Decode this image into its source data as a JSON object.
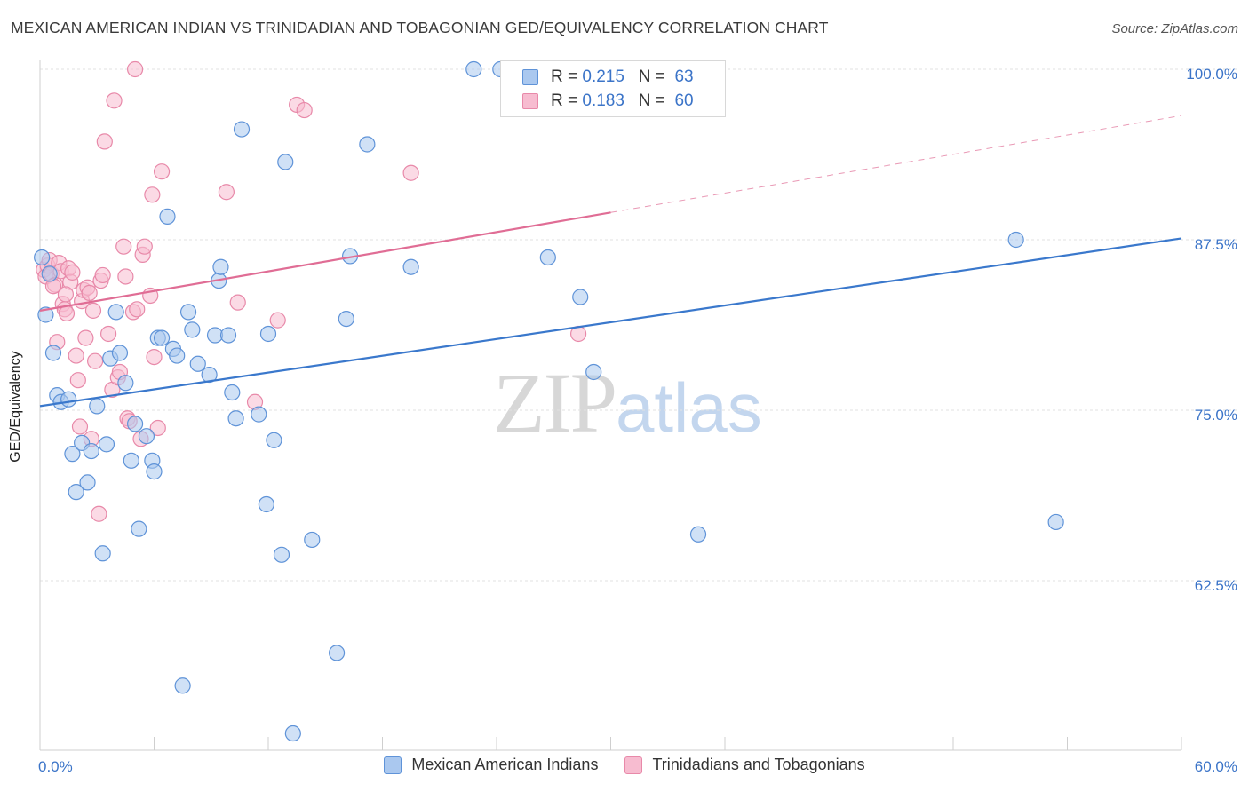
{
  "header": {
    "title": "MEXICAN AMERICAN INDIAN VS TRINIDADIAN AND TOBAGONIAN GED/EQUIVALENCY CORRELATION CHART",
    "source": "Source: ZipAtlas.com"
  },
  "watermark": {
    "zip": "ZIP",
    "atlas": "atlas"
  },
  "legend_top": [
    {
      "r_label": "R =",
      "r_value": "0.215",
      "n_label": "N =",
      "n_value": "63"
    },
    {
      "r_label": "R =",
      "r_value": "0.183",
      "n_label": "N =",
      "n_value": "60"
    }
  ],
  "colors": {
    "blue_fill": "#aac8ef",
    "blue_stroke": "#5f93d8",
    "blue_line": "#3a78cc",
    "pink_fill": "#f7bcd0",
    "pink_stroke": "#e889a9",
    "pink_line": "#e06d95",
    "tick_label": "#3b74c8",
    "grid": "#e2e2e2"
  },
  "chart_data": {
    "type": "scatter",
    "title": "MEXICAN AMERICAN INDIAN VS TRINIDADIAN AND TOBAGONIAN GED/EQUIVALENCY CORRELATION CHART",
    "xlabel": "",
    "ylabel": "GED/Equivalency",
    "xlim": [
      0,
      60
    ],
    "ylim": [
      51,
      102
    ],
    "x_tick_labels": [
      "0.0%",
      "60.0%"
    ],
    "y_ticks": [
      62.5,
      75.0,
      87.5,
      100.0
    ],
    "y_tick_labels": [
      "62.5%",
      "75.0%",
      "87.5%",
      "100.0%"
    ],
    "grid": "horizontal dashed",
    "legend_position": "top-center and bottom",
    "series": [
      {
        "name": "Mexican American Indians",
        "color": "#aac8ef",
        "r": 0.215,
        "n": 63,
        "trend": {
          "x": [
            0,
            60
          ],
          "y": [
            75.3,
            87.6
          ],
          "style": "solid"
        },
        "points": [
          [
            0.1,
            86.2
          ],
          [
            0.3,
            82.0
          ],
          [
            0.7,
            79.2
          ],
          [
            0.9,
            76.1
          ],
          [
            1.1,
            75.6
          ],
          [
            1.5,
            75.8
          ],
          [
            1.7,
            71.8
          ],
          [
            1.9,
            69.0
          ],
          [
            2.2,
            72.6
          ],
          [
            2.5,
            69.7
          ],
          [
            2.7,
            72.0
          ],
          [
            3.0,
            75.3
          ],
          [
            3.3,
            64.5
          ],
          [
            3.5,
            72.5
          ],
          [
            3.7,
            78.8
          ],
          [
            4.0,
            82.2
          ],
          [
            4.2,
            79.2
          ],
          [
            4.5,
            77.0
          ],
          [
            4.8,
            71.3
          ],
          [
            5.0,
            74.0
          ],
          [
            5.2,
            66.3
          ],
          [
            5.6,
            73.1
          ],
          [
            5.9,
            71.3
          ],
          [
            6.0,
            70.5
          ],
          [
            6.2,
            80.3
          ],
          [
            6.4,
            80.3
          ],
          [
            6.7,
            89.2
          ],
          [
            7.0,
            79.5
          ],
          [
            7.2,
            79.0
          ],
          [
            7.5,
            54.8
          ],
          [
            7.8,
            82.2
          ],
          [
            8.0,
            80.9
          ],
          [
            8.3,
            78.4
          ],
          [
            8.9,
            77.6
          ],
          [
            9.2,
            80.5
          ],
          [
            9.4,
            84.5
          ],
          [
            9.5,
            85.5
          ],
          [
            9.9,
            80.5
          ],
          [
            10.1,
            76.3
          ],
          [
            10.3,
            74.4
          ],
          [
            10.6,
            95.6
          ],
          [
            11.5,
            74.7
          ],
          [
            11.9,
            68.1
          ],
          [
            12.0,
            80.6
          ],
          [
            12.3,
            72.8
          ],
          [
            12.7,
            64.4
          ],
          [
            12.9,
            93.2
          ],
          [
            13.3,
            51.3
          ],
          [
            14.3,
            65.5
          ],
          [
            15.6,
            57.2
          ],
          [
            16.1,
            81.7
          ],
          [
            16.3,
            86.3
          ],
          [
            17.2,
            94.5
          ],
          [
            19.5,
            85.5
          ],
          [
            22.8,
            100.0
          ],
          [
            24.2,
            100.0
          ],
          [
            26.7,
            86.2
          ],
          [
            28.4,
            83.3
          ],
          [
            29.1,
            77.8
          ],
          [
            34.6,
            65.9
          ],
          [
            51.3,
            87.5
          ],
          [
            53.4,
            66.8
          ],
          [
            0.5,
            85.0
          ]
        ]
      },
      {
        "name": "Trinidadians and Tobagonians",
        "color": "#f7bcd0",
        "r": 0.183,
        "n": 60,
        "trend": {
          "x": [
            0,
            30
          ],
          "y": [
            82.3,
            89.5
          ],
          "style": "solid",
          "extended": {
            "x": [
              30,
              60
            ],
            "y": [
              89.5,
              96.6
            ],
            "style": "dashed"
          }
        },
        "points": [
          [
            0.2,
            85.3
          ],
          [
            0.3,
            84.8
          ],
          [
            0.4,
            85.6
          ],
          [
            0.5,
            86.0
          ],
          [
            0.6,
            85.0
          ],
          [
            0.8,
            84.2
          ],
          [
            0.9,
            80.0
          ],
          [
            1.0,
            85.8
          ],
          [
            1.1,
            85.2
          ],
          [
            1.2,
            82.8
          ],
          [
            1.3,
            82.4
          ],
          [
            1.4,
            82.1
          ],
          [
            1.5,
            85.4
          ],
          [
            1.6,
            84.4
          ],
          [
            1.7,
            85.1
          ],
          [
            1.9,
            79.0
          ],
          [
            2.0,
            77.2
          ],
          [
            2.1,
            73.8
          ],
          [
            2.2,
            83.0
          ],
          [
            2.3,
            83.8
          ],
          [
            2.4,
            80.3
          ],
          [
            2.5,
            84.0
          ],
          [
            2.6,
            83.6
          ],
          [
            2.7,
            72.9
          ],
          [
            2.8,
            82.3
          ],
          [
            2.9,
            78.6
          ],
          [
            3.1,
            67.4
          ],
          [
            3.2,
            84.5
          ],
          [
            3.3,
            84.9
          ],
          [
            3.4,
            94.7
          ],
          [
            3.6,
            80.6
          ],
          [
            3.8,
            76.5
          ],
          [
            3.9,
            97.7
          ],
          [
            4.1,
            77.4
          ],
          [
            4.2,
            77.8
          ],
          [
            4.4,
            87.0
          ],
          [
            4.5,
            84.8
          ],
          [
            4.6,
            74.4
          ],
          [
            4.7,
            74.2
          ],
          [
            4.9,
            82.2
          ],
          [
            5.0,
            100.0
          ],
          [
            5.1,
            82.4
          ],
          [
            5.3,
            72.9
          ],
          [
            5.4,
            86.4
          ],
          [
            5.5,
            87.0
          ],
          [
            5.8,
            83.4
          ],
          [
            5.9,
            90.8
          ],
          [
            6.0,
            78.9
          ],
          [
            6.2,
            73.7
          ],
          [
            6.4,
            92.5
          ],
          [
            9.8,
            91.0
          ],
          [
            10.4,
            82.9
          ],
          [
            11.3,
            75.6
          ],
          [
            12.5,
            81.6
          ],
          [
            13.5,
            97.4
          ],
          [
            13.9,
            97.0
          ],
          [
            19.5,
            92.4
          ],
          [
            28.3,
            80.6
          ],
          [
            1.35,
            83.5
          ],
          [
            0.7,
            84.1
          ]
        ]
      }
    ]
  },
  "legend_bottom": [
    {
      "label": "Mexican American Indians"
    },
    {
      "label": "Trinidadians and Tobagonians"
    }
  ]
}
